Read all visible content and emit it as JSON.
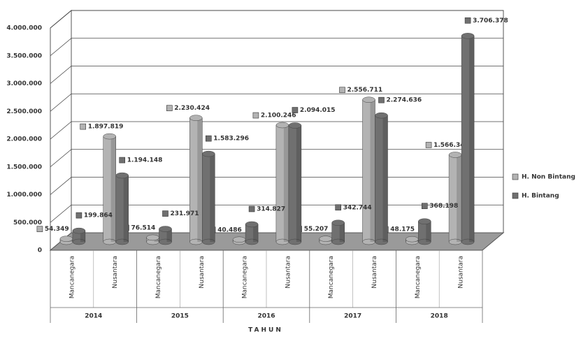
{
  "chart_data": {
    "type": "bar3d",
    "xlabel": "TAHUN",
    "categories": [
      "Mancanegara",
      "Nusantara",
      "Mancanegara",
      "Nusantara",
      "Mancanegara",
      "Nusantara",
      "Mancanegara",
      "Nusantara",
      "Mancanegara",
      "Nusantara"
    ],
    "groups": [
      "2014",
      "2015",
      "2016",
      "2017",
      "2018"
    ],
    "series": [
      {
        "name": "H. Non Bintang",
        "color": "#b3b3b3",
        "values": [
          54349,
          1897819,
          76514,
          2230424,
          40486,
          2100246,
          55207,
          2556711,
          48175,
          1566340
        ],
        "value_labels": [
          "54.349",
          "1.897.819",
          "76.514",
          "2.230.424",
          "40.486",
          "2.100.246",
          "55.207",
          "2.556.711",
          "48.175",
          "1.566.340"
        ]
      },
      {
        "name": "H. Bintang",
        "color": "#707070",
        "values": [
          199864,
          1194148,
          231971,
          1583296,
          314827,
          2094015,
          342744,
          2274636,
          368198,
          3706378
        ],
        "value_labels": [
          "199.864",
          "1.194.148",
          "231.971",
          "1.583.296",
          "314.827",
          "2.094.015",
          "342.744",
          "2.274.636",
          "368.198",
          "3.706.378"
        ]
      }
    ],
    "ylim": [
      0,
      4000000
    ],
    "yticks": [
      0,
      {
        "value": 500000,
        "label": "500.000"
      },
      {
        "value": 1000000,
        "label": "1.000.000"
      },
      {
        "value": 1500000,
        "label": "1.500.000"
      },
      {
        "value": 2000000,
        "label": "2.000.000"
      },
      {
        "value": 2500000,
        "label": "2.500.000"
      },
      {
        "value": 3000000,
        "label": "3.000.000"
      },
      {
        "value": 3500000,
        "label": "3.500.000"
      },
      {
        "value": 4000000,
        "label": "4.000.000"
      }
    ],
    "grid": true,
    "legend": "right"
  }
}
